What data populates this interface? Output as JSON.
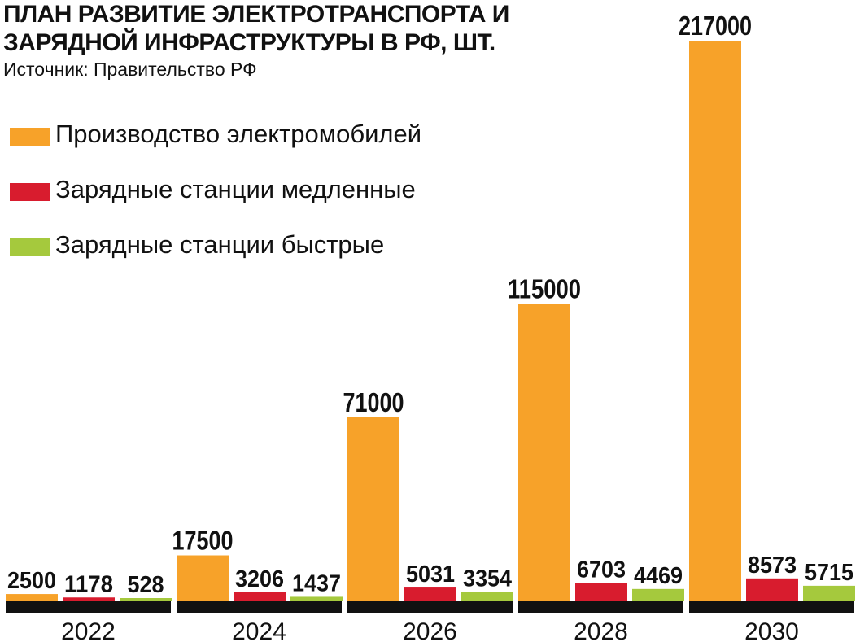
{
  "title": {
    "line1": "ПЛАН РАЗВИТИЕ ЭЛЕКТРОТРАНСПОРТА И",
    "line2": "ЗАРЯДНОЙ ИНФРАСТРУКТУРЫ В РФ, ШТ."
  },
  "source": "Источник: Правительство РФ",
  "legend": [
    {
      "label": "Производство электромобилей",
      "color": "#f7a229"
    },
    {
      "label": "Зарядные станции медленные",
      "color": "#d81c2e"
    },
    {
      "label": "Зарядные станции быстрые",
      "color": "#a5c93d"
    }
  ],
  "chart_data": {
    "type": "bar",
    "title": "ПЛАН РАЗВИТИЕ ЭЛЕКТРОТРАНСПОРТА И ЗАРЯДНОЙ ИНФРАСТРУКТУРЫ В РФ, ШТ.",
    "categories": [
      "2022",
      "2024",
      "2026",
      "2028",
      "2030"
    ],
    "series": [
      {
        "name": "Производство электромобилей",
        "color": "#f7a229",
        "values": [
          2500,
          17500,
          71000,
          115000,
          217000
        ]
      },
      {
        "name": "Зарядные станции медленные",
        "color": "#d81c2e",
        "values": [
          1178,
          3206,
          5031,
          6703,
          8573
        ]
      },
      {
        "name": "Зарядные станции быстрые",
        "color": "#a5c93d",
        "values": [
          528,
          1437,
          3354,
          4469,
          5715
        ]
      }
    ],
    "value_labels": [
      [
        "2500",
        "17500",
        "71000",
        "115000",
        "217000"
      ],
      [
        "1178",
        "3206",
        "5031",
        "6703",
        "8573"
      ],
      [
        "528",
        "1437",
        "3354",
        "4469",
        "5715"
      ]
    ],
    "ylim": [
      0,
      217000
    ],
    "grid": false,
    "legend_position": "top-left"
  }
}
